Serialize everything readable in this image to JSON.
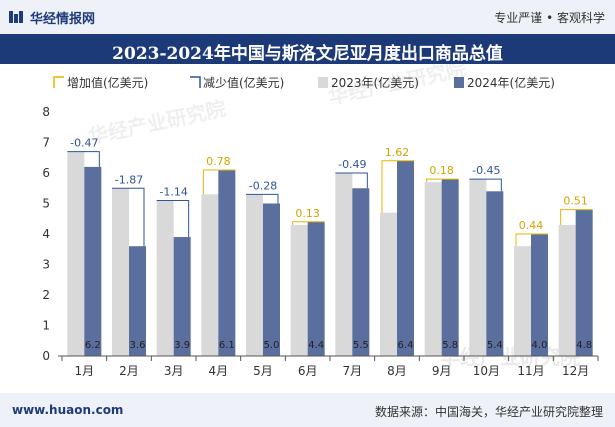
{
  "header": {
    "brand": "华经情报网",
    "slogan": "专业严谨 • 客观科学"
  },
  "footer": {
    "url": "www.huaon.com",
    "source": "数据来源：中国海关，华经产业研究院整理"
  },
  "colors": {
    "bar2023": "#d9d9d9",
    "bar2024": "#5a6f9e",
    "increase": "#e8b400",
    "decrease": "#2f5597",
    "title_bg": "#1d3a78"
  },
  "chart_data": {
    "type": "bar",
    "title": "2023-2024年中国与斯洛文尼亚月度出口商品总值",
    "categories": [
      "1月",
      "2月",
      "3月",
      "4月",
      "5月",
      "6月",
      "7月",
      "8月",
      "9月",
      "10月",
      "11月",
      "12月"
    ],
    "series": [
      {
        "name": "2023年(亿美元)",
        "values": [
          6.7,
          5.5,
          5.1,
          5.3,
          5.3,
          4.3,
          6.0,
          4.7,
          5.7,
          5.8,
          3.6,
          4.3
        ]
      },
      {
        "name": "2024年(亿美元)",
        "values": [
          6.2,
          3.6,
          3.9,
          6.1,
          5.0,
          4.4,
          5.5,
          6.4,
          5.8,
          5.4,
          4.0,
          4.8
        ]
      }
    ],
    "change_values": [
      -0.47,
      -1.87,
      -1.14,
      0.78,
      -0.28,
      0.13,
      -0.49,
      1.62,
      0.18,
      -0.45,
      0.44,
      0.51
    ],
    "change_labels": [
      "-0.47",
      "-1.87",
      "-1.14",
      "0.78",
      "-0.28",
      "0.13",
      "-0.49",
      "1.62",
      "0.18",
      "-0.45",
      "0.44",
      "0.51"
    ],
    "value_labels_2024": [
      "6.2",
      "3.6",
      "3.9",
      "6.1",
      "5.0",
      "4.4",
      "5.5",
      "6.4",
      "5.8",
      "5.4",
      "4.0",
      "4.8"
    ],
    "legend": [
      "增加值(亿美元)",
      "减少值(亿美元)",
      "2023年(亿美元)",
      "2024年(亿美元)"
    ],
    "legend_position": "top",
    "y_ticks": [
      "0",
      "1",
      "2",
      "3",
      "4",
      "5",
      "6",
      "7",
      "8"
    ],
    "ylim": [
      0,
      8
    ],
    "grid": false,
    "watermark": "华经产业研究院"
  }
}
